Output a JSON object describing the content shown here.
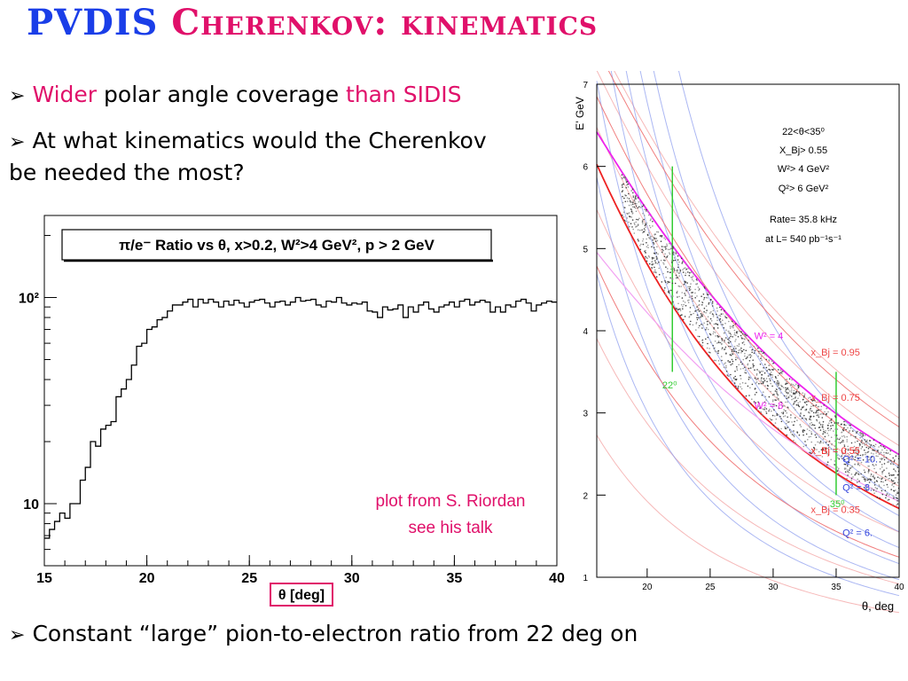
{
  "slide": {
    "title_part1": "PVDIS",
    "title_part2": "Cherenkov: kinematics",
    "bullet1": {
      "w1": "Wider",
      "w2": "polar angle coverage",
      "w3": "than SIDIS"
    },
    "bullet2_line1": "At what kinematics would the Cherenkov",
    "bullet2_line2": "be needed the most?",
    "bullet3": "Constant “large” pion-to-electron ratio from 22 deg on",
    "credit_line1": "plot from S. Riordan",
    "credit_line2": "see his talk",
    "arrow_glyph": "➢"
  },
  "colors": {
    "blue": "#1a3ee8",
    "pink": "#e0106a",
    "green": "#33cc33",
    "red": "#ee2222",
    "magenta": "#ee22ee"
  },
  "chart_data": [
    {
      "type": "line",
      "title": "π/e⁻ Ratio vs θ, x>0.2, W²>4 GeV², p > 2 GeV",
      "xlabel": "θ [deg]",
      "ylabel": "",
      "xlim": [
        15,
        40
      ],
      "ylim": [
        5,
        250
      ],
      "yscale": "log",
      "xticks": [
        "15",
        "20",
        "25",
        "30",
        "35",
        "40"
      ],
      "yticks": [
        "10",
        "10²"
      ],
      "series": [
        {
          "x": [
            15.0,
            15.25,
            15.5,
            15.75,
            16.0,
            16.25,
            16.5,
            16.75,
            17.0,
            17.25,
            17.5,
            17.75,
            18.0,
            18.25,
            18.5,
            18.75,
            19.0,
            19.25,
            19.5,
            19.75,
            20.0,
            20.25,
            20.5,
            20.75,
            21.0,
            21.25,
            21.5,
            21.75,
            22.0,
            22.25,
            22.5,
            22.75,
            23.0,
            23.25,
            23.5,
            23.75,
            24.0,
            24.25,
            24.5,
            24.75,
            25.0,
            25.25,
            25.5,
            25.75,
            26.0,
            26.25,
            26.5,
            26.75,
            27.0,
            27.25,
            27.5,
            27.75,
            28.0,
            28.25,
            28.5,
            28.75,
            29.0,
            29.25,
            29.5,
            29.75,
            30.0,
            30.25,
            30.5,
            30.75,
            31.0,
            31.25,
            31.5,
            31.75,
            32.0,
            32.25,
            32.5,
            32.75,
            33.0,
            33.25,
            33.5,
            33.75,
            34.0,
            34.25,
            34.5,
            34.75,
            35.0,
            35.25,
            35.5,
            35.75,
            36.0,
            36.25,
            36.5,
            36.75,
            37.0,
            37.25,
            37.5,
            37.75,
            38.0,
            38.25,
            38.5,
            38.75,
            39.0,
            39.25,
            39.5,
            39.75
          ],
          "y": [
            6.8,
            7.5,
            8.2,
            9,
            8.5,
            10,
            10,
            13,
            15,
            20,
            19,
            23,
            24,
            25,
            33,
            36,
            40,
            47,
            58,
            60,
            70,
            72,
            78,
            80,
            86,
            92,
            92,
            95,
            98,
            90,
            98,
            94,
            98,
            95,
            90,
            96,
            92,
            97,
            94,
            90,
            95,
            97,
            98,
            94,
            90,
            95,
            96,
            92,
            95,
            100,
            96,
            97,
            98,
            92,
            90,
            96,
            95,
            100,
            94,
            92,
            94,
            93,
            95,
            86,
            85,
            80,
            90,
            87,
            88,
            92,
            80,
            90,
            85,
            92,
            95,
            88,
            85,
            90,
            92,
            95,
            90,
            96,
            98,
            92,
            95,
            97,
            95,
            85,
            90,
            85,
            92,
            90,
            96,
            98,
            94,
            86,
            92,
            94,
            96,
            95
          ]
        }
      ]
    },
    {
      "type": "scatter",
      "title": "",
      "xlabel": "θ, deg",
      "ylabel": "E' GeV",
      "xlim": [
        16,
        40
      ],
      "ylim": [
        1,
        7
      ],
      "xticks": [
        "20",
        "25",
        "30",
        "35",
        "40"
      ],
      "yticks": [
        "1",
        "2",
        "3",
        "4",
        "5",
        "6",
        "7"
      ],
      "annotation_lines": [
        "22<θ<35⁰",
        "X_Bj> 0.55",
        "W²> 4 GeV²",
        "Q²> 6 GeV²",
        "Rate= 35.8 kHz",
        "at L= 540 pb⁻¹s⁻¹"
      ],
      "curve_labels": [
        "W² = 4",
        "W² = 8",
        "x_Bj = 0.95",
        "x_Bj = 0.75",
        "x_Bj = 0.55",
        "x_Bj = 0.35",
        "Q² = 10.",
        "Q² = 8.",
        "Q² = 6."
      ],
      "cut_labels": [
        "22⁰",
        "35⁰"
      ]
    }
  ]
}
